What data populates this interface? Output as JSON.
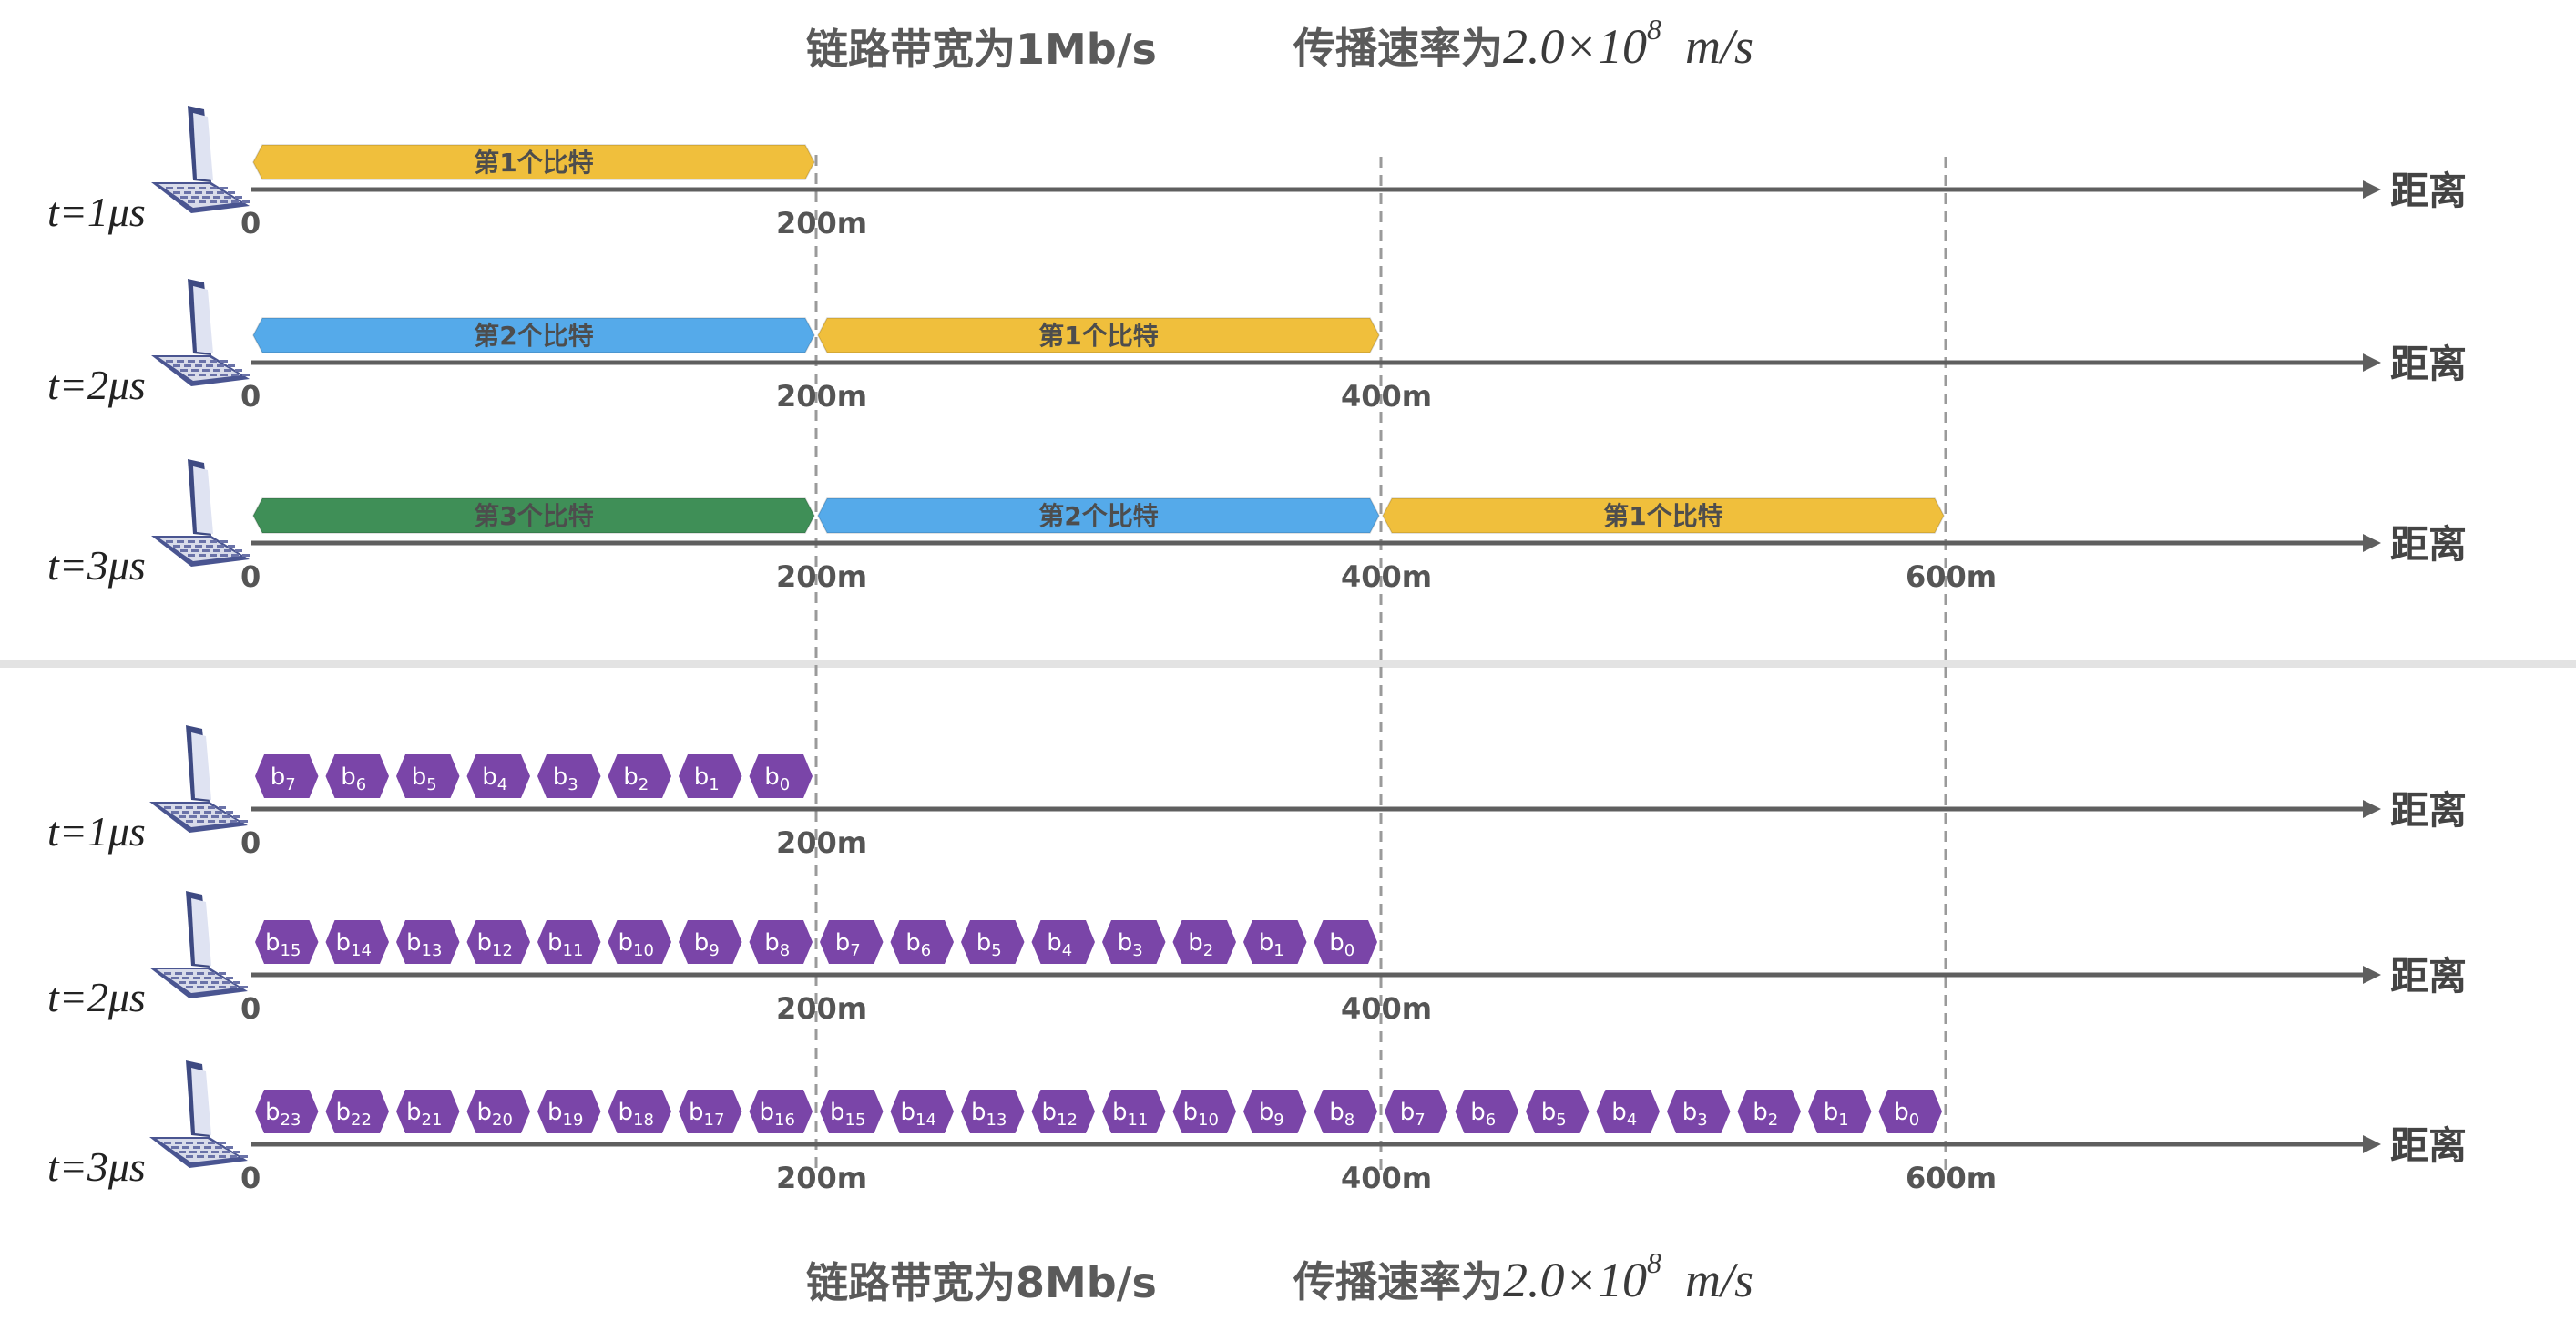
{
  "header_top": {
    "bandwidth": "链路带宽为1Mb/s",
    "speed_label": "传播速率为",
    "speed_value": "2.0×10",
    "speed_exp": "8",
    "speed_unit": "m/s"
  },
  "header_bottom": {
    "bandwidth": "链路带宽为8Mb/s",
    "speed_label": "传播速率为",
    "speed_value": "2.0×10",
    "speed_exp": "8",
    "speed_unit": "m/s"
  },
  "axis_label": "距离",
  "tick_labels": [
    "0",
    "200m",
    "400m",
    "600m"
  ],
  "colors": {
    "bit1": "#f0bf3c",
    "bit2": "#55aaea",
    "bit3": "#3f8f57",
    "bit_small": "#7a45a8",
    "axis": "#5f5f5f",
    "dashed": "#9a9a9a"
  },
  "top_panel": {
    "rows": [
      {
        "time": "t=1μs",
        "segments": [
          "第1个比特"
        ]
      },
      {
        "time": "t=2μs",
        "segments": [
          "第2个比特",
          "第1个比特"
        ]
      },
      {
        "time": "t=3μs",
        "segments": [
          "第3个比特",
          "第2个比特",
          "第1个比特"
        ]
      }
    ]
  },
  "bottom_panel": {
    "rows": [
      {
        "time": "t=1μs",
        "bits": [
          [
            "b",
            "7"
          ],
          [
            "b",
            "6"
          ],
          [
            "b",
            "5"
          ],
          [
            "b",
            "4"
          ],
          [
            "b",
            "3"
          ],
          [
            "b",
            "2"
          ],
          [
            "b",
            "1"
          ],
          [
            "b",
            "0"
          ]
        ]
      },
      {
        "time": "t=2μs",
        "bits": [
          [
            "b",
            "15"
          ],
          [
            "b",
            "14"
          ],
          [
            "b",
            "13"
          ],
          [
            "b",
            "12"
          ],
          [
            "b",
            "11"
          ],
          [
            "b",
            "10"
          ],
          [
            "b",
            "9"
          ],
          [
            "b",
            "8"
          ],
          [
            "b",
            "7"
          ],
          [
            "b",
            "6"
          ],
          [
            "b",
            "5"
          ],
          [
            "b",
            "4"
          ],
          [
            "b",
            "3"
          ],
          [
            "b",
            "2"
          ],
          [
            "b",
            "1"
          ],
          [
            "b",
            "0"
          ]
        ]
      },
      {
        "time": "t=3μs",
        "bits": [
          [
            "b",
            "23"
          ],
          [
            "b",
            "22"
          ],
          [
            "b",
            "21"
          ],
          [
            "b",
            "20"
          ],
          [
            "b",
            "19"
          ],
          [
            "b",
            "18"
          ],
          [
            "b",
            "17"
          ],
          [
            "b",
            "16"
          ],
          [
            "b",
            "15"
          ],
          [
            "b",
            "14"
          ],
          [
            "b",
            "13"
          ],
          [
            "b",
            "12"
          ],
          [
            "b",
            "11"
          ],
          [
            "b",
            "10"
          ],
          [
            "b",
            "9"
          ],
          [
            "b",
            "8"
          ],
          [
            "b",
            "7"
          ],
          [
            "b",
            "6"
          ],
          [
            "b",
            "5"
          ],
          [
            "b",
            "4"
          ],
          [
            "b",
            "3"
          ],
          [
            "b",
            "2"
          ],
          [
            "b",
            "1"
          ],
          [
            "b",
            "0"
          ]
        ]
      }
    ]
  }
}
